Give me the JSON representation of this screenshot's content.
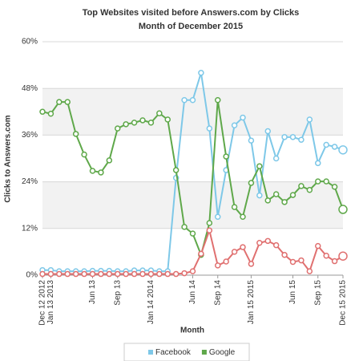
{
  "chart_data": {
    "type": "line",
    "title": "Top Websites visited before Answers.com by Clicks",
    "subtitle": "Month of December 2015",
    "x_label": "Month",
    "y_label": "Clicks to Answers.com",
    "categories": [
      "Dec 12 2012",
      "Jan 13 2013",
      null,
      null,
      null,
      null,
      "Jun 13",
      null,
      null,
      "Sep 13",
      null,
      null,
      null,
      "Jan 14 2014",
      null,
      null,
      null,
      null,
      "Jun 14",
      null,
      null,
      "Sep 14",
      null,
      null,
      null,
      "Jan 15 2015",
      null,
      null,
      null,
      null,
      "Jun 15",
      null,
      null,
      "Sep 15",
      null,
      null,
      "Dec 15 2015"
    ],
    "ylim": [
      0,
      60
    ],
    "yticks": [
      {
        "value": 0,
        "label": "0%"
      },
      {
        "value": 12,
        "label": "12%"
      },
      {
        "value": 24,
        "label": "24%"
      },
      {
        "value": 36,
        "label": "36%"
      },
      {
        "value": 48,
        "label": "48%"
      },
      {
        "value": 60,
        "label": "60%"
      }
    ],
    "grid": true,
    "alternate_bands": true,
    "series": [
      {
        "name": "Facebook",
        "color": "#7ec8e8",
        "values": [
          1.3,
          1.3,
          1,
          1,
          1,
          1,
          1.1,
          1.1,
          1.1,
          1,
          1,
          1.2,
          1.2,
          1.2,
          1,
          1,
          25,
          45,
          45,
          52,
          37.7,
          15,
          27,
          38.5,
          40.5,
          34.6,
          20.5,
          37,
          30,
          35.5,
          35.5,
          34.8,
          40,
          28.8,
          33.5,
          33,
          32.2
        ]
      },
      {
        "name": "Google",
        "color": "#5fa84a",
        "values": [
          42,
          41.5,
          44.5,
          44.5,
          36.3,
          31,
          26.8,
          26.4,
          29.5,
          37.7,
          38.8,
          39.2,
          39.8,
          39.2,
          41.6,
          40,
          27,
          12.4,
          10.7,
          5.2,
          13.4,
          45,
          30.5,
          17.5,
          15,
          23.7,
          28,
          19.2,
          20.8,
          18.8,
          20.6,
          22.9,
          21.9,
          24.1,
          24.1,
          22.7,
          16.9
        ]
      },
      {
        "color": "#e07070",
        "values": [
          0.3,
          0.3,
          0.3,
          0.3,
          0.3,
          0.3,
          0.3,
          0.3,
          0.3,
          0.3,
          0.3,
          0.3,
          0.3,
          0.3,
          0.3,
          0.3,
          0.3,
          0.5,
          1,
          5.5,
          11.5,
          2.5,
          3.5,
          6,
          7.2,
          2.9,
          8.3,
          8.8,
          7.7,
          5.2,
          3.4,
          3.8,
          1,
          7.5,
          5,
          3.6,
          4.9
        ]
      }
    ]
  }
}
